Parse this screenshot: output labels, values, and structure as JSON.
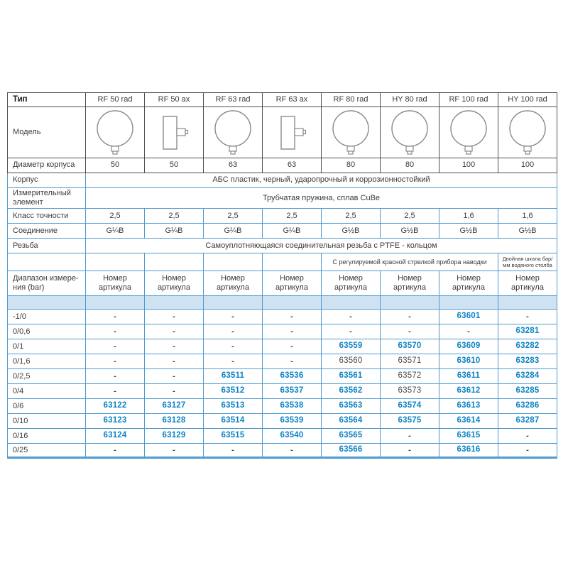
{
  "colors": {
    "border_dark": "#4f4f4f",
    "border_blue": "#4e9ad1",
    "accent_blue": "#0d82c4",
    "highlight_row_bg": "#cfe2f2",
    "drawing_stroke": "#8a8a8a"
  },
  "table": {
    "type_label": "Тип",
    "type_columns": [
      "RF 50 rad",
      "RF 50 ax",
      "RF 63 rad",
      "RF 63 ax",
      "RF 80 rad",
      "HY 80 rad",
      "RF 100 rad",
      "HY 100 rad"
    ],
    "model_label": "Модель",
    "model_shapes": [
      "radial",
      "axial",
      "radial",
      "axial",
      "radial",
      "radial",
      "radial",
      "radial"
    ],
    "diameter_label": "Диаметр корпуса",
    "diameter_values": [
      "50",
      "50",
      "63",
      "63",
      "80",
      "80",
      "100",
      "100"
    ],
    "body_label": "Корпус",
    "body_value": "АБС пластик, черный, ударопрочный и коррозионностойкий",
    "element_label": "Измерительный элемент",
    "element_value": "Трубчатая пружина, сплав CuBe",
    "accuracy_label": "Класс точности",
    "accuracy_values": [
      "2,5",
      "2,5",
      "2,5",
      "2,5",
      "2,5",
      "2,5",
      "1,6",
      "1,6"
    ],
    "connection_label": "Соединение",
    "connection_values": [
      "G¼B",
      "G¼B",
      "G¼B",
      "G¼B",
      "G½B",
      "G½B",
      "G½B",
      "G½B"
    ],
    "thread_label": "Резьба",
    "thread_value": "Самоуплотняющаяся соединительная резьба с PTFE - кольцом",
    "red_pointer_note": "С регулируемой красной стрелкой прибора наводки",
    "dual_scale_note_line1": "Двойная шкала бар/",
    "dual_scale_note_line2": "мм водяного столба",
    "range_label_line1": "Диапазон измере-",
    "range_label_line2": "ния (bar)",
    "article_header": "Номер артикула",
    "plain_numbers": [
      "63560",
      "63571",
      "63572",
      "63573"
    ],
    "data_rows": [
      {
        "range": "-1/0",
        "cells": [
          "-",
          "-",
          "-",
          "-",
          "-",
          "-",
          "63601",
          "-"
        ]
      },
      {
        "range": "0/0,6",
        "cells": [
          "-",
          "-",
          "-",
          "-",
          "-",
          "-",
          "-",
          "63281"
        ]
      },
      {
        "range": "0/1",
        "cells": [
          "-",
          "-",
          "-",
          "-",
          "63559",
          "63570",
          "63609",
          "63282"
        ]
      },
      {
        "range": "0/1,6",
        "cells": [
          "-",
          "-",
          "-",
          "-",
          "63560",
          "63571",
          "63610",
          "63283"
        ]
      },
      {
        "range": "0/2,5",
        "cells": [
          "-",
          "-",
          "63511",
          "63536",
          "63561",
          "63572",
          "63611",
          "63284"
        ]
      },
      {
        "range": "0/4",
        "cells": [
          "-",
          "-",
          "63512",
          "63537",
          "63562",
          "63573",
          "63612",
          "63285"
        ]
      },
      {
        "range": "0/6",
        "cells": [
          "63122",
          "63127",
          "63513",
          "63538",
          "63563",
          "63574",
          "63613",
          "63286"
        ]
      },
      {
        "range": "0/10",
        "cells": [
          "63123",
          "63128",
          "63514",
          "63539",
          "63564",
          "63575",
          "63614",
          "63287"
        ]
      },
      {
        "range": "0/16",
        "cells": [
          "63124",
          "63129",
          "63515",
          "63540",
          "63565",
          "-",
          "63615",
          "-"
        ]
      },
      {
        "range": "0/25",
        "cells": [
          "-",
          "-",
          "-",
          "-",
          "63566",
          "-",
          "63616",
          "-"
        ]
      }
    ]
  }
}
